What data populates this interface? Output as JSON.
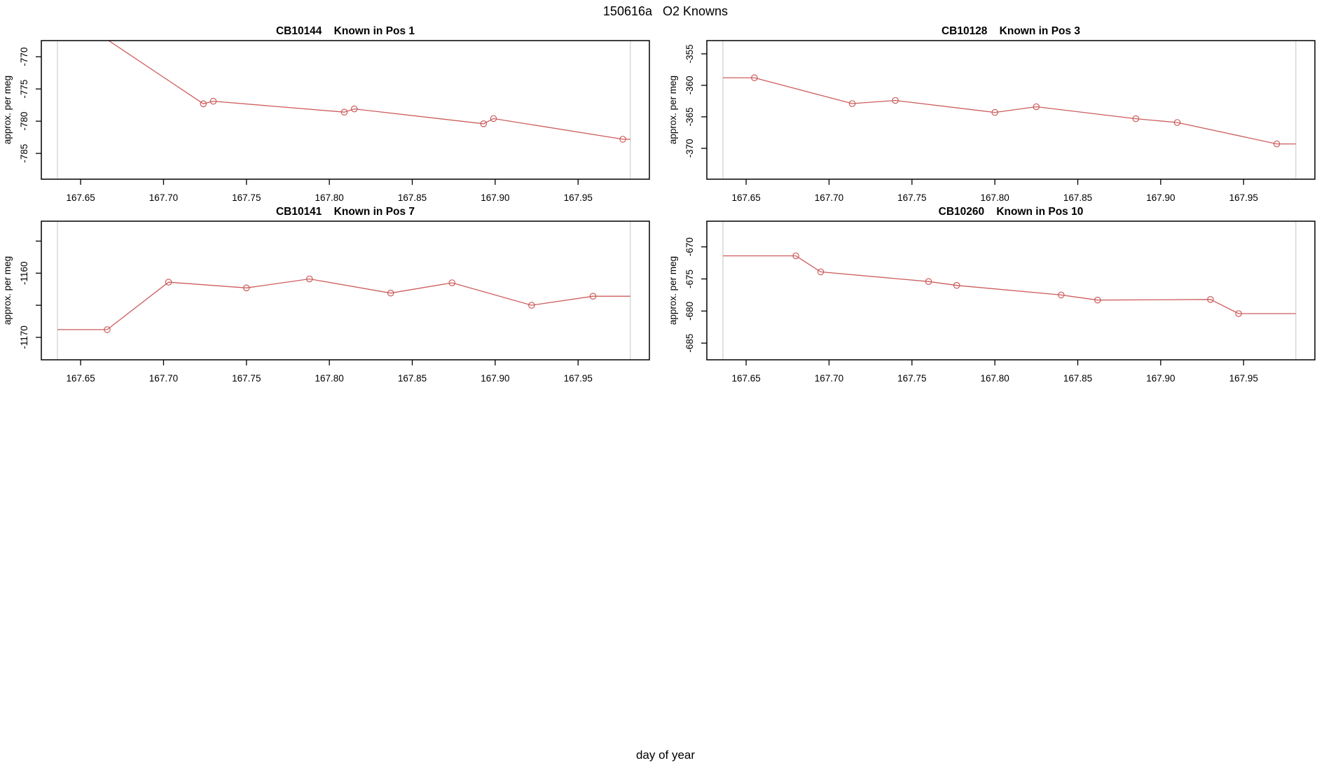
{
  "page": {
    "main_title": "150616a   O2 Knowns",
    "outer_xlabel": "day of year"
  },
  "style": {
    "series_color": "#CD5C5C",
    "marker_color": "#CD5C5C",
    "boundary_line_color": "#D3D3D3",
    "axis_color": "#000000",
    "text_color": "#000000",
    "background": "#FFFFFF"
  },
  "chart_data": {
    "type": "line",
    "layout": "2x2 panels, R base graphics style",
    "xlabel": "day of year",
    "shared_x": {
      "xlim": [
        167.6263,
        167.993
      ],
      "xticks": [
        167.65,
        167.7,
        167.75,
        167.8,
        167.85,
        167.9,
        167.95
      ],
      "xtick_labels": [
        "167.65",
        "167.70",
        "167.75",
        "167.80",
        "167.85",
        "167.90",
        "167.95"
      ],
      "run_boundary_vlines": [
        167.636,
        167.9815
      ]
    },
    "panels": [
      {
        "sample_id": "CB10144",
        "title": "CB10144    Known in Pos 1",
        "ylabel": "approx. per meg",
        "ylim": [
          -789.0,
          -767.5
        ],
        "yticks": [
          -770,
          -775,
          -780,
          -785
        ],
        "ytick_labels": [
          "-770",
          "-775",
          "-780",
          "-785"
        ],
        "grid": {
          "row": 0,
          "col": 0
        },
        "x": [
          167.636,
          167.724,
          167.73,
          167.809,
          167.815,
          167.893,
          167.899,
          167.977,
          167.9815
        ],
        "y": [
          -762.2,
          -777.3,
          -776.9,
          -778.6,
          -778.1,
          -780.4,
          -779.6,
          -782.8,
          -782.8
        ],
        "note": "first segment enters from above plot top (clipped); endpoints at run boundaries have no markers"
      },
      {
        "sample_id": "CB10128",
        "title": "CB10128    Known in Pos 3",
        "ylabel": "approx. per meg",
        "ylim": [
          -374.9,
          -352.9
        ],
        "yticks": [
          -355,
          -360,
          -365,
          -370
        ],
        "ytick_labels": [
          "-355",
          "-360",
          "-365",
          "-370"
        ],
        "grid": {
          "row": 0,
          "col": 1
        },
        "x": [
          167.636,
          167.655,
          167.714,
          167.74,
          167.8,
          167.825,
          167.885,
          167.91,
          167.97,
          167.9815
        ],
        "y": [
          -358.8,
          -358.8,
          -362.9,
          -362.4,
          -364.3,
          -363.4,
          -365.3,
          -365.9,
          -369.3,
          -369.3
        ],
        "note": "endpoints at run boundaries have no markers"
      },
      {
        "sample_id": "CB10141",
        "title": "CB10141    Known in Pos 7",
        "ylabel": "approx. per meg",
        "ylim": [
          -1173.5,
          -1151.9
        ],
        "yticks": [
          -1155,
          -1160,
          -1165,
          -1170
        ],
        "ytick_labels": [
          "",
          "-1160",
          "",
          "-1170"
        ],
        "grid": {
          "row": 1,
          "col": 0
        },
        "x": [
          167.636,
          167.666,
          167.703,
          167.75,
          167.788,
          167.837,
          167.874,
          167.922,
          167.959,
          167.9815
        ],
        "y": [
          -1168.8,
          -1168.8,
          -1161.4,
          -1162.3,
          -1160.9,
          -1163.1,
          -1161.5,
          -1165.0,
          -1163.6,
          -1163.6
        ],
        "note": "endpoints at run boundaries have no markers"
      },
      {
        "sample_id": "CB10260",
        "title": "CB10260    Known in Pos 10",
        "ylabel": "approx. per meg",
        "ylim": [
          -687.6,
          -666.0
        ],
        "yticks": [
          -670,
          -675,
          -680,
          -685
        ],
        "ytick_labels": [
          "-670",
          "-675",
          "-680",
          "-685"
        ],
        "grid": {
          "row": 1,
          "col": 1
        },
        "x": [
          167.636,
          167.68,
          167.695,
          167.76,
          167.777,
          167.84,
          167.862,
          167.93,
          167.947,
          167.9815
        ],
        "y": [
          -671.4,
          -671.4,
          -673.9,
          -675.4,
          -676.0,
          -677.5,
          -678.3,
          -678.2,
          -680.4,
          -680.4
        ],
        "note": "endpoints at run boundaries have no markers"
      }
    ]
  }
}
